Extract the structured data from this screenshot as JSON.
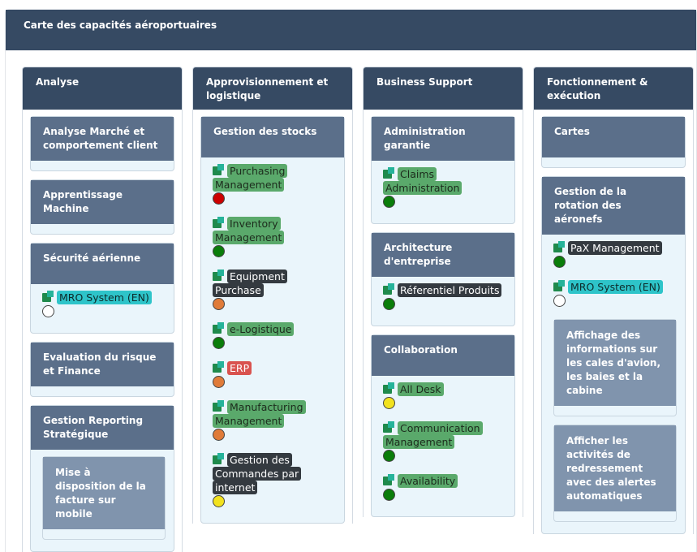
{
  "page": {
    "title": "Carte des capacités aéroportuaires"
  },
  "label_colors": {
    "green": "#5aa96b",
    "dark": "#343a40",
    "red": "#d9534f",
    "teal": "#2ec4c9"
  },
  "status_colors": {
    "red": "#cc0000",
    "green": "#0a7d0a",
    "orange": "#e07b39",
    "yellow": "#f2e21e",
    "none": "#ffffff"
  },
  "columns": [
    {
      "title": "Analyse",
      "cards": [
        {
          "title": "Analyse Marché et comportement client",
          "apps": [],
          "subcards": []
        },
        {
          "title": "Apprentissage Machine",
          "apps": [],
          "subcards": []
        },
        {
          "title": "Sécurité aérienne",
          "apps": [
            {
              "name": "MRO System (EN)",
              "label": "teal",
              "status": "none",
              "icon": "user-puzzle-icon"
            }
          ],
          "subcards": []
        },
        {
          "title": "Evaluation du risque et Finance",
          "apps": [],
          "subcards": []
        },
        {
          "title": "Gestion Reporting Stratégique",
          "apps": [],
          "subcards": [
            {
              "title": "Mise à disposition de la facture sur mobile"
            }
          ]
        }
      ]
    },
    {
      "title": "Approvisionnement et logistique",
      "cards": [
        {
          "title": "Gestion des stocks",
          "apps": [
            {
              "name": "Purchasing Management",
              "label": "green",
              "status": "red",
              "icon": "puzzle-icon"
            },
            {
              "name": "Inventory Management",
              "label": "green",
              "status": "green",
              "icon": "puzzle-icon"
            },
            {
              "name": "Equipment Purchase",
              "label": "dark",
              "status": "orange",
              "icon": "puzzle-icon"
            },
            {
              "name": "e-Logistique",
              "label": "green",
              "status": "green",
              "icon": "puzzle-icon"
            },
            {
              "name": "ERP",
              "label": "red",
              "status": "orange",
              "icon": "puzzle-icon"
            },
            {
              "name": "Manufacturing Management",
              "label": "green",
              "status": "orange",
              "icon": "puzzle-icon"
            },
            {
              "name": "Gestion des Commandes par internet",
              "label": "dark",
              "status": "yellow",
              "icon": "puzzle-icon"
            }
          ],
          "subcards": []
        }
      ]
    },
    {
      "title": "Business Support",
      "cards": [
        {
          "title": "Administration garantie",
          "apps": [
            {
              "name": "Claims Administration",
              "label": "green",
              "status": "green",
              "icon": "puzzle-icon"
            }
          ],
          "subcards": []
        },
        {
          "title": "Architecture d'entreprise",
          "apps": [
            {
              "name": "Réferentiel Produits",
              "label": "dark",
              "status": "green",
              "icon": "puzzle-icon"
            }
          ],
          "subcards": []
        },
        {
          "title": "Collaboration",
          "apps": [
            {
              "name": "All Desk",
              "label": "green",
              "status": "yellow",
              "icon": "puzzle-icon"
            },
            {
              "name": "Communication Management",
              "label": "green",
              "status": "green",
              "icon": "puzzle-icon"
            },
            {
              "name": "Availability",
              "label": "green",
              "status": "green",
              "icon": "puzzle-icon"
            }
          ],
          "subcards": []
        }
      ]
    },
    {
      "title": "Fonctionnement & exécution",
      "cards": [
        {
          "title": "Cartes",
          "apps": [],
          "subcards": []
        },
        {
          "title": "Gestion de la rotation des aéronefs",
          "apps": [
            {
              "name": "PaX Management",
              "label": "dark",
              "status": "green",
              "icon": "puzzle-icon"
            },
            {
              "name": "MRO System (EN)",
              "label": "teal",
              "status": "none",
              "icon": "user-puzzle-icon"
            }
          ],
          "subcards": [
            {
              "title": "Affichage des informations sur les cales d'avion, les baies et la cabine"
            },
            {
              "title": "Afficher les activités de redressement avec des alertes automatiques"
            }
          ]
        }
      ]
    }
  ]
}
